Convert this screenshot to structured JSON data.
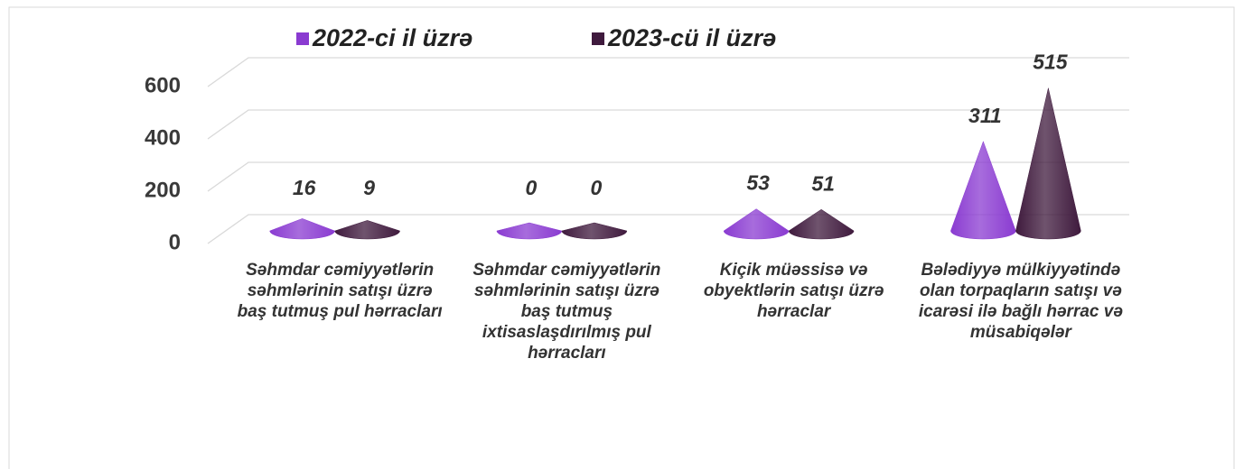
{
  "chart_data": {
    "type": "cone",
    "categories": [
      "Səhmdar cəmiyyətlərin səhmlərinin satışı üzrə baş tutmuş pul hərracları",
      "Səhmdar cəmiyyətlərin səhmlərinin satışı üzrə baş tutmuş ixtisaslaşdırılmış pul hərracları",
      "Kiçik müəssisə və obyektlərin satışı üzrə hərraclar",
      "Bələdiyyə mülkiyyətində olan torpaqların satışı və icarəsi ilə bağlı hərrac və müsabiqələr"
    ],
    "series": [
      {
        "name": "2022-ci il üzrə",
        "color": "#8a3bd1",
        "values": [
          16,
          0,
          53,
          311
        ]
      },
      {
        "name": "2023-cü il üzrə",
        "color": "#3f1a3d",
        "values": [
          9,
          0,
          51,
          515
        ]
      }
    ],
    "ylim": [
      0,
      600
    ],
    "yticks": [
      0,
      200,
      400,
      600
    ],
    "grid": true,
    "legend": "top"
  }
}
